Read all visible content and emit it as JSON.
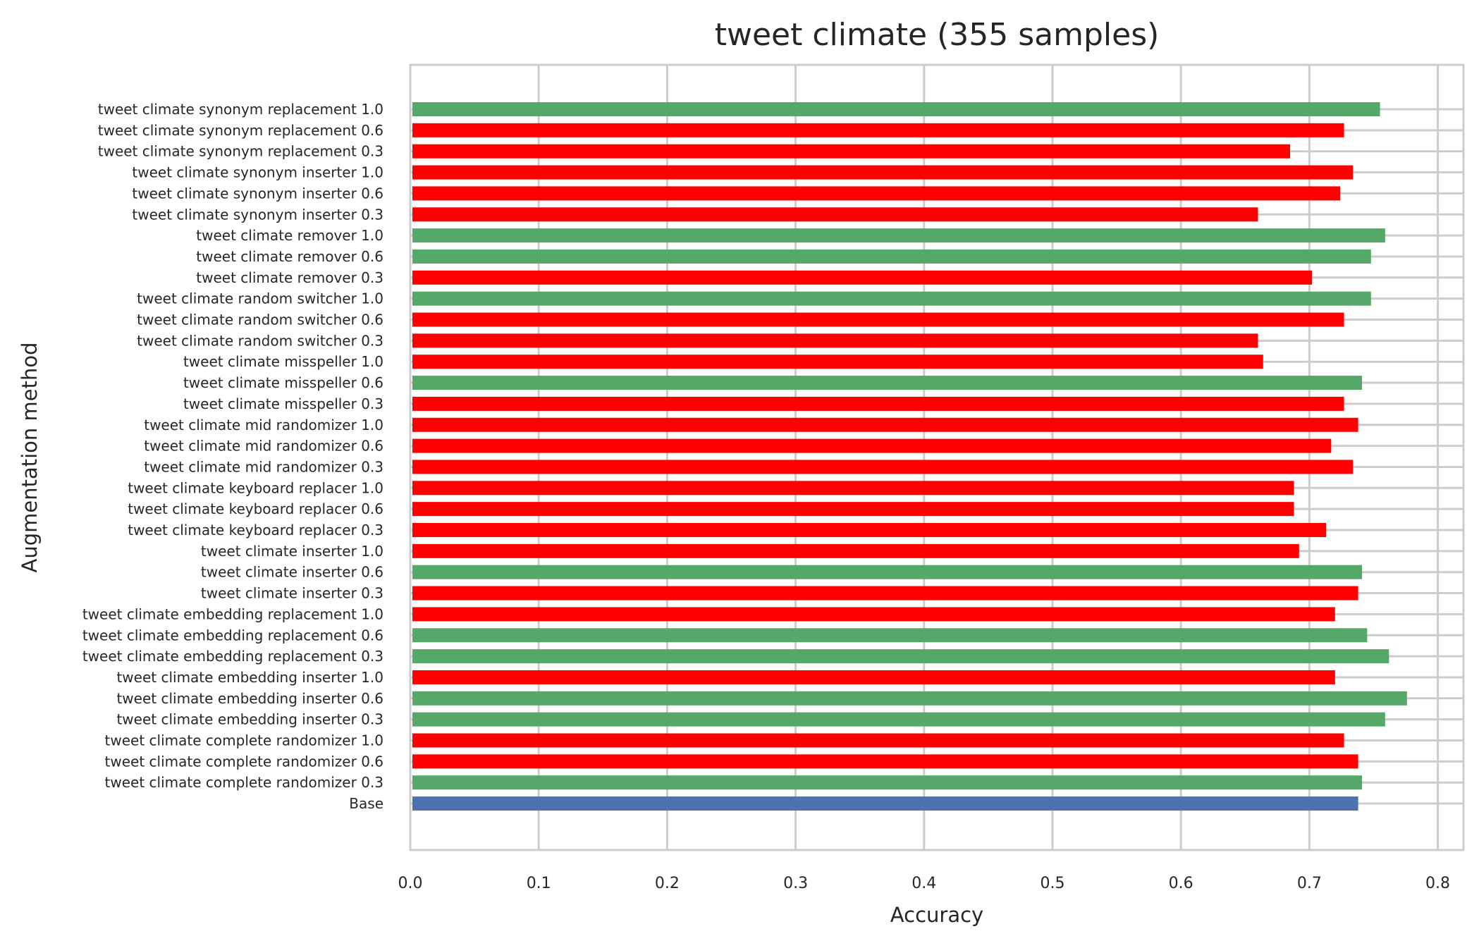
{
  "chart_data": {
    "type": "bar",
    "orientation": "horizontal",
    "title": "tweet climate (355 samples)",
    "xlabel": "Accuracy",
    "ylabel": "Augmentation method",
    "xlim": [
      0,
      0.82
    ],
    "xticks": [
      "0.0",
      "0.1",
      "0.2",
      "0.3",
      "0.4",
      "0.5",
      "0.6",
      "0.7",
      "0.8"
    ],
    "grid": true,
    "legend": "none",
    "colors": {
      "better": "#55a868",
      "worse": "#ff0000",
      "base": "#4c72b0",
      "grid": "#cccccc",
      "axes": "#cccccc"
    },
    "categories": [
      "tweet climate synonym replacement 1.0",
      "tweet climate synonym replacement 0.6",
      "tweet climate synonym replacement 0.3",
      "tweet climate synonym inserter 1.0",
      "tweet climate synonym inserter 0.6",
      "tweet climate synonym inserter 0.3",
      "tweet climate remover 1.0",
      "tweet climate remover 0.6",
      "tweet climate remover 0.3",
      "tweet climate random switcher 1.0",
      "tweet climate random switcher 0.6",
      "tweet climate random switcher 0.3",
      "tweet climate misspeller 1.0",
      "tweet climate misspeller 0.6",
      "tweet climate misspeller 0.3",
      "tweet climate mid randomizer 1.0",
      "tweet climate mid randomizer 0.6",
      "tweet climate mid randomizer 0.3",
      "tweet climate keyboard replacer 1.0",
      "tweet climate keyboard replacer 0.6",
      "tweet climate keyboard replacer 0.3",
      "tweet climate inserter 1.0",
      "tweet climate inserter 0.6",
      "tweet climate inserter 0.3",
      "tweet climate embedding replacement 1.0",
      "tweet climate embedding replacement 0.6",
      "tweet climate embedding replacement 0.3",
      "tweet climate embedding inserter 1.0",
      "tweet climate embedding inserter 0.6",
      "tweet climate embedding inserter 0.3",
      "tweet climate complete randomizer 1.0",
      "tweet climate complete randomizer 0.6",
      "tweet climate complete randomizer 0.3",
      "Base"
    ],
    "values": [
      0.755,
      0.727,
      0.685,
      0.734,
      0.724,
      0.66,
      0.759,
      0.748,
      0.702,
      0.748,
      0.727,
      0.66,
      0.664,
      0.741,
      0.727,
      0.738,
      0.717,
      0.734,
      0.688,
      0.688,
      0.713,
      0.692,
      0.741,
      0.738,
      0.72,
      0.745,
      0.762,
      0.72,
      0.776,
      0.759,
      0.727,
      0.738,
      0.741,
      0.738
    ],
    "bar_colors": [
      "better",
      "worse",
      "worse",
      "worse",
      "worse",
      "worse",
      "better",
      "better",
      "worse",
      "better",
      "worse",
      "worse",
      "worse",
      "better",
      "worse",
      "worse",
      "worse",
      "worse",
      "worse",
      "worse",
      "worse",
      "worse",
      "better",
      "worse",
      "worse",
      "better",
      "better",
      "worse",
      "better",
      "better",
      "worse",
      "worse",
      "better",
      "base"
    ]
  }
}
